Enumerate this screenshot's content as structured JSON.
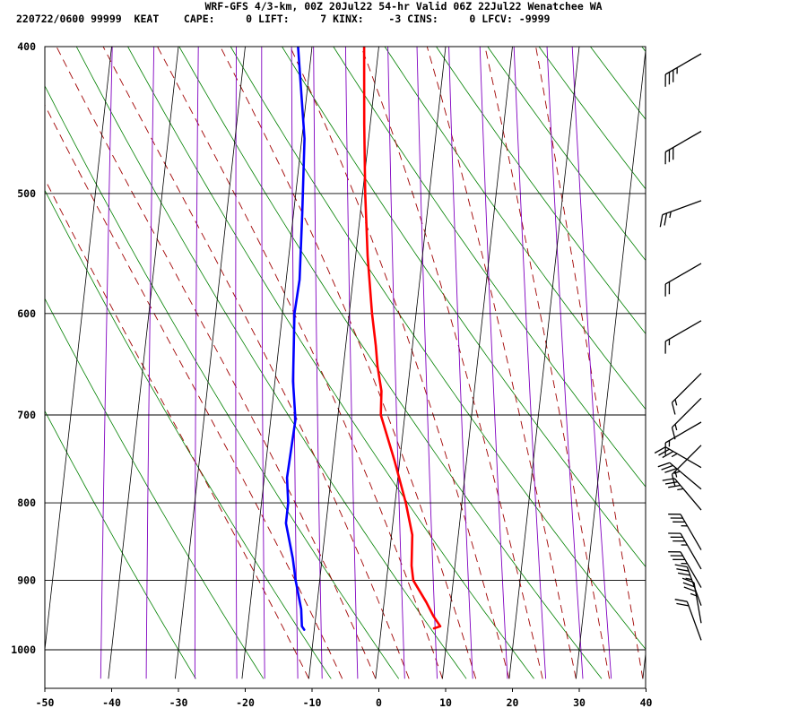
{
  "header": {
    "title": "WRF-GFS 4/3-km, 00Z 20Jul22 54-hr Valid 06Z 22Jul22 Wenatchee WA",
    "info": "220722/0600 99999  KEAT    CAPE:     0 LIFT:     7 KINX:    -3 CINS:     0 LFCV: -9999"
  },
  "colors": {
    "temperature": "#ff0000",
    "dewpoint": "#0000ff",
    "isotherm": "#000000",
    "dry_adiabat": "#008000",
    "moist_adiabat": "#a00000",
    "mixing_ratio": "#8000c0"
  },
  "chart_data": {
    "type": "line",
    "skew_t": true,
    "y_scale": "log",
    "xlim": [
      -50,
      40
    ],
    "ylim": [
      1040,
      400
    ],
    "x_ticks": [
      -50,
      -40,
      -30,
      -20,
      -10,
      0,
      10,
      20,
      30,
      40
    ],
    "x_tick_labels": [
      "-50",
      "-40",
      "-30",
      "-20",
      "-10",
      "0",
      "10",
      "20",
      "30",
      "40"
    ],
    "pressure_levels": [
      400,
      500,
      600,
      700,
      800,
      900,
      1000
    ],
    "pressure_labels": [
      "400",
      "500",
      "600",
      "700",
      "800",
      "900",
      "1000"
    ],
    "grid": true,
    "series": [
      {
        "key": "temperature",
        "color": "#ff0000",
        "p": [
          400,
          450,
          500,
          550,
          600,
          630,
          650,
          675,
          700,
          750,
          800,
          840,
          880,
          900,
          930,
          950,
          965,
          968
        ],
        "t": [
          -12.2,
          -10.9,
          -9.6,
          -8.2,
          -6.6,
          -5.5,
          -4.9,
          -3.9,
          -3.6,
          -0.8,
          1.6,
          3.1,
          3.5,
          4.0,
          6.3,
          7.6,
          8.8,
          7.9
        ]
      },
      {
        "key": "dewpoint",
        "color": "#0000ff",
        "p": [
          400,
          460,
          515,
          570,
          600,
          665,
          705,
          770,
          800,
          825,
          870,
          900,
          940,
          965,
          970
        ],
        "t": [
          -22.1,
          -19.6,
          -18.7,
          -18.0,
          -18.2,
          -17.3,
          -16.3,
          -16.6,
          -16.0,
          -16.0,
          -14.4,
          -13.6,
          -12.3,
          -11.9,
          -11.5
        ]
      }
    ]
  },
  "wind": {
    "levels_hpa": [
      400,
      450,
      500,
      550,
      600,
      650,
      675,
      700,
      725,
      750,
      775,
      800,
      850,
      875,
      900,
      925,
      950,
      975
    ],
    "speeds_kt": [
      35,
      30,
      25,
      20,
      15,
      15,
      15,
      15,
      15,
      35,
      35,
      35,
      35,
      35,
      35,
      35,
      35,
      20
    ],
    "dirs_deg": [
      240,
      240,
      250,
      240,
      240,
      225,
      225,
      240,
      225,
      300,
      310,
      320,
      330,
      330,
      330,
      340,
      350,
      340
    ]
  }
}
